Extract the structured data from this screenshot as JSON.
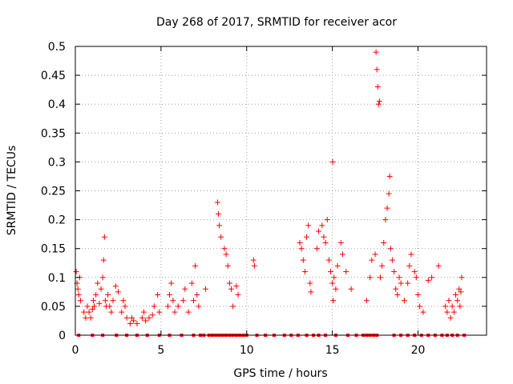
{
  "chart_data": {
    "type": "scatter",
    "title": "Day 268 of 2017, SRMTID for receiver acor",
    "xlabel": "GPS time / hours",
    "ylabel": "SRMTID / TECUs",
    "xlim": [
      0,
      24
    ],
    "ylim": [
      0,
      0.5
    ],
    "x_ticks": [
      0,
      5,
      10,
      15,
      20
    ],
    "x_tick_labels": [
      "0",
      "5",
      "10",
      "15",
      "20"
    ],
    "y_ticks": [
      0,
      0.05,
      0.1,
      0.15,
      0.2,
      0.25,
      0.3,
      0.35,
      0.4,
      0.45,
      0.5
    ],
    "y_tick_labels": [
      "0",
      "0.05",
      "0.1",
      "0.15",
      "0.2",
      "0.25",
      "0.3",
      "0.35",
      "0.4",
      "0.45",
      "0.5"
    ],
    "grid": true,
    "marker": "+",
    "color": "#ff0000",
    "series": [
      {
        "name": "SRMTID",
        "points": [
          [
            0.05,
            0.11
          ],
          [
            0.1,
            0.09
          ],
          [
            0.15,
            0.08
          ],
          [
            0.2,
            0.07
          ],
          [
            0.25,
            0.1
          ],
          [
            0.3,
            0.06
          ],
          [
            0.5,
            0.04
          ],
          [
            0.6,
            0.03
          ],
          [
            0.7,
            0.05
          ],
          [
            0.8,
            0.04
          ],
          [
            0.9,
            0.03
          ],
          [
            1.0,
            0.045
          ],
          [
            1.05,
            0.06
          ],
          [
            1.1,
            0.05
          ],
          [
            1.2,
            0.07
          ],
          [
            1.3,
            0.09
          ],
          [
            1.4,
            0.055
          ],
          [
            1.5,
            0.08
          ],
          [
            1.6,
            0.1
          ],
          [
            1.65,
            0.13
          ],
          [
            1.7,
            0.17
          ],
          [
            1.75,
            0.06
          ],
          [
            1.8,
            0.05
          ],
          [
            1.9,
            0.07
          ],
          [
            2.0,
            0.05
          ],
          [
            2.1,
            0.04
          ],
          [
            2.2,
            0.06
          ],
          [
            2.35,
            0.085
          ],
          [
            2.5,
            0.075
          ],
          [
            2.7,
            0.04
          ],
          [
            2.8,
            0.06
          ],
          [
            2.9,
            0.05
          ],
          [
            3.0,
            0.03
          ],
          [
            3.2,
            0.02
          ],
          [
            3.3,
            0.03
          ],
          [
            3.4,
            0.025
          ],
          [
            3.6,
            0.02
          ],
          [
            3.9,
            0.03
          ],
          [
            4.0,
            0.04
          ],
          [
            4.1,
            0.025
          ],
          [
            4.3,
            0.03
          ],
          [
            4.5,
            0.035
          ],
          [
            4.6,
            0.05
          ],
          [
            4.8,
            0.07
          ],
          [
            4.9,
            0.04
          ],
          [
            5.4,
            0.05
          ],
          [
            5.5,
            0.07
          ],
          [
            5.6,
            0.09
          ],
          [
            5.7,
            0.06
          ],
          [
            5.8,
            0.04
          ],
          [
            6.0,
            0.05
          ],
          [
            6.3,
            0.06
          ],
          [
            6.4,
            0.08
          ],
          [
            6.6,
            0.04
          ],
          [
            6.8,
            0.09
          ],
          [
            6.9,
            0.06
          ],
          [
            7.0,
            0.12
          ],
          [
            7.1,
            0.07
          ],
          [
            7.2,
            0.05
          ],
          [
            7.6,
            0.08
          ],
          [
            8.3,
            0.23
          ],
          [
            8.35,
            0.21
          ],
          [
            8.4,
            0.19
          ],
          [
            8.5,
            0.17
          ],
          [
            8.7,
            0.15
          ],
          [
            8.8,
            0.14
          ],
          [
            8.9,
            0.12
          ],
          [
            9.0,
            0.09
          ],
          [
            9.1,
            0.08
          ],
          [
            9.2,
            0.05
          ],
          [
            9.4,
            0.085
          ],
          [
            9.5,
            0.07
          ],
          [
            10.4,
            0.13
          ],
          [
            10.45,
            0.12
          ],
          [
            13.1,
            0.16
          ],
          [
            13.2,
            0.15
          ],
          [
            13.3,
            0.13
          ],
          [
            13.4,
            0.11
          ],
          [
            13.5,
            0.17
          ],
          [
            13.6,
            0.19
          ],
          [
            13.7,
            0.09
          ],
          [
            13.75,
            0.075
          ],
          [
            14.1,
            0.15
          ],
          [
            14.2,
            0.18
          ],
          [
            14.4,
            0.19
          ],
          [
            14.5,
            0.17
          ],
          [
            14.6,
            0.16
          ],
          [
            14.7,
            0.2
          ],
          [
            14.8,
            0.13
          ],
          [
            14.9,
            0.11
          ],
          [
            15.0,
            0.09
          ],
          [
            15.05,
            0.06
          ],
          [
            15.1,
            0.1
          ],
          [
            15.2,
            0.08
          ],
          [
            15.3,
            0.12
          ],
          [
            15.5,
            0.16
          ],
          [
            15.6,
            0.14
          ],
          [
            15.8,
            0.11
          ],
          [
            15.02,
            0.3
          ],
          [
            16.1,
            0.08
          ],
          [
            17.0,
            0.06
          ],
          [
            17.2,
            0.1
          ],
          [
            17.3,
            0.13
          ],
          [
            17.5,
            0.14
          ],
          [
            17.55,
            0.49
          ],
          [
            17.6,
            0.46
          ],
          [
            17.65,
            0.43
          ],
          [
            17.7,
            0.4
          ],
          [
            17.75,
            0.405
          ],
          [
            17.8,
            0.1
          ],
          [
            17.9,
            0.12
          ],
          [
            18.0,
            0.16
          ],
          [
            18.1,
            0.2
          ],
          [
            18.2,
            0.22
          ],
          [
            18.3,
            0.245
          ],
          [
            18.35,
            0.275
          ],
          [
            18.4,
            0.15
          ],
          [
            18.5,
            0.13
          ],
          [
            18.6,
            0.11
          ],
          [
            18.7,
            0.08
          ],
          [
            18.8,
            0.07
          ],
          [
            18.9,
            0.1
          ],
          [
            19.0,
            0.09
          ],
          [
            19.2,
            0.06
          ],
          [
            19.4,
            0.09
          ],
          [
            19.5,
            0.12
          ],
          [
            19.6,
            0.14
          ],
          [
            19.8,
            0.11
          ],
          [
            19.9,
            0.1
          ],
          [
            20.0,
            0.07
          ],
          [
            20.1,
            0.05
          ],
          [
            20.3,
            0.04
          ],
          [
            20.6,
            0.095
          ],
          [
            20.8,
            0.1
          ],
          [
            21.2,
            0.12
          ],
          [
            21.6,
            0.05
          ],
          [
            21.7,
            0.04
          ],
          [
            21.8,
            0.06
          ],
          [
            21.9,
            0.03
          ],
          [
            22.0,
            0.05
          ],
          [
            22.1,
            0.04
          ],
          [
            22.2,
            0.07
          ],
          [
            22.3,
            0.06
          ],
          [
            22.4,
            0.08
          ],
          [
            22.45,
            0.05
          ],
          [
            22.5,
            0.075
          ],
          [
            22.55,
            0.1
          ]
        ]
      }
    ],
    "zero_markers_x": [
      0.2,
      1.0,
      1.6,
      2.4,
      3.0,
      3.6,
      4.2,
      4.9,
      5.5,
      6.2,
      6.9,
      7.3,
      7.5,
      7.8,
      8.0,
      8.2,
      8.4,
      8.6,
      8.8,
      9.0,
      9.2,
      9.4,
      9.6,
      9.8,
      10.0,
      10.6,
      11.1,
      11.6,
      12.2,
      12.6,
      13.0,
      13.5,
      13.9,
      14.2,
      14.6,
      15.2,
      15.9,
      16.4,
      16.8,
      17.0,
      17.2,
      17.4,
      17.6,
      18.6,
      19.0,
      19.4,
      19.8,
      20.2,
      20.6,
      21.0,
      21.4,
      21.7,
      22.0,
      22.3,
      22.7
    ]
  }
}
